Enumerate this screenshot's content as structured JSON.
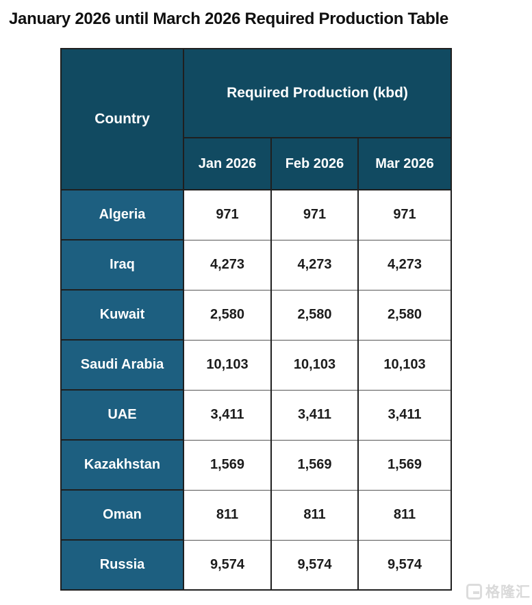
{
  "page": {
    "title": "January 2026 until March 2026 Required Production Table"
  },
  "table": {
    "corner_header": "Country",
    "group_header": "Required Production (kbd)",
    "month_headers": [
      "Jan 2026",
      "Feb 2026",
      "Mar 2026"
    ],
    "rows": [
      {
        "country": "Algeria",
        "values": [
          "971",
          "971",
          "971"
        ]
      },
      {
        "country": "Iraq",
        "values": [
          "4,273",
          "4,273",
          "4,273"
        ]
      },
      {
        "country": "Kuwait",
        "values": [
          "2,580",
          "2,580",
          "2,580"
        ]
      },
      {
        "country": "Saudi Arabia",
        "values": [
          "10,103",
          "10,103",
          "10,103"
        ]
      },
      {
        "country": "UAE",
        "values": [
          "3,411",
          "3,411",
          "3,411"
        ]
      },
      {
        "country": "Kazakhstan",
        "values": [
          "1,569",
          "1,569",
          "1,569"
        ]
      },
      {
        "country": "Oman",
        "values": [
          "811",
          "811",
          "811"
        ]
      },
      {
        "country": "Russia",
        "values": [
          "9,574",
          "9,574",
          "9,574"
        ]
      }
    ]
  },
  "watermark": {
    "logo_icon": "gelonghui-g-logo",
    "brand_text": "格隆汇"
  },
  "colors": {
    "header_bg": "#114a61",
    "country_bg": "#1d5f80",
    "cell_bg": "#ffffff",
    "border": "#1f1f1f",
    "header_text": "#ffffff",
    "value_text": "#1c1c1c",
    "title_text": "#101010",
    "watermark": "#d9d9d9"
  },
  "chart_data": {
    "type": "table",
    "title": "January 2026 until March 2026 Required Production Table",
    "group_header": "Required Production (kbd)",
    "unit": "kbd",
    "columns": [
      "Country",
      "Jan 2026",
      "Feb 2026",
      "Mar 2026"
    ],
    "rows": [
      [
        "Algeria",
        971,
        971,
        971
      ],
      [
        "Iraq",
        4273,
        4273,
        4273
      ],
      [
        "Kuwait",
        2580,
        2580,
        2580
      ],
      [
        "Saudi Arabia",
        10103,
        10103,
        10103
      ],
      [
        "UAE",
        3411,
        3411,
        3411
      ],
      [
        "Kazakhstan",
        1569,
        1569,
        1569
      ],
      [
        "Oman",
        811,
        811,
        811
      ],
      [
        "Russia",
        9574,
        9574,
        9574
      ]
    ]
  }
}
